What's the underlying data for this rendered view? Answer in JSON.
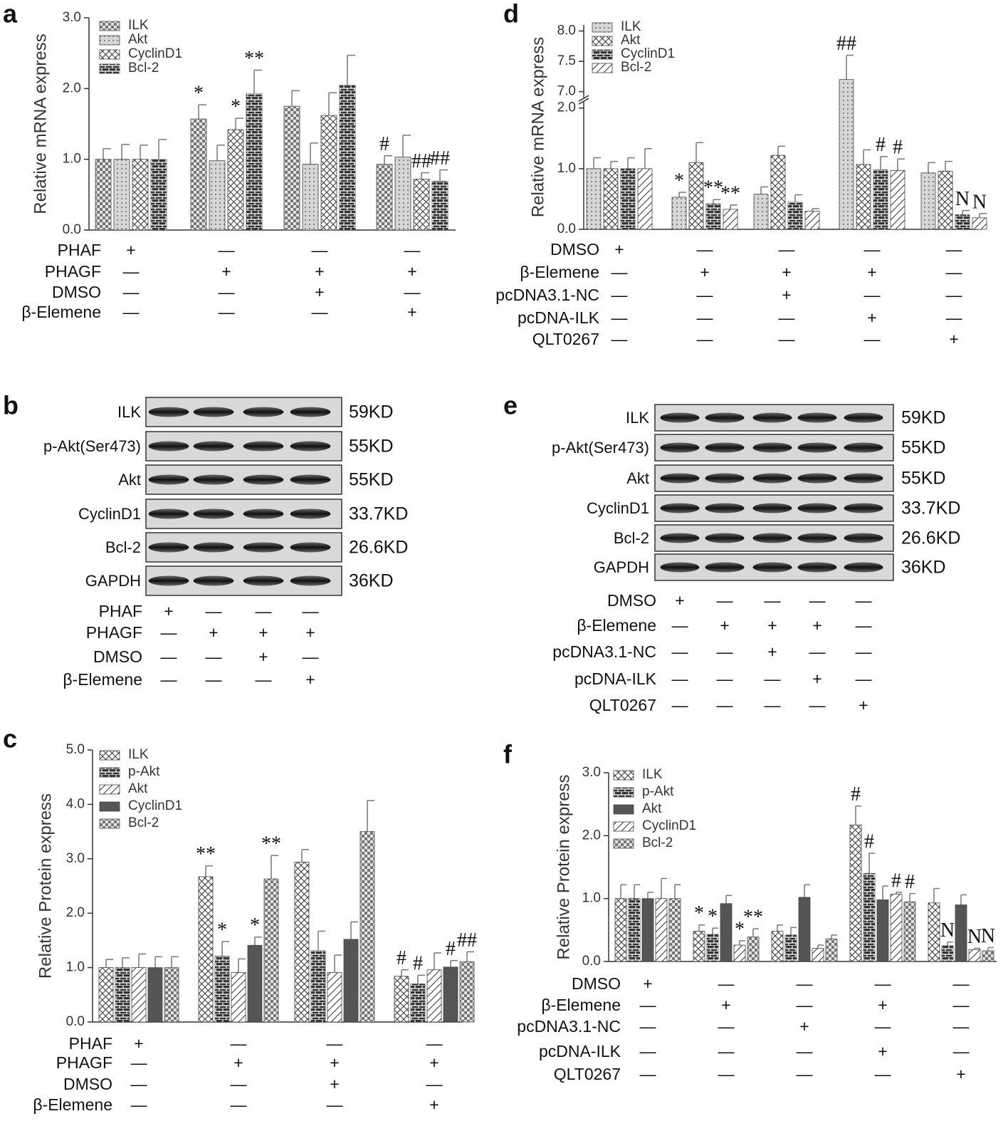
{
  "chart_data": [
    {
      "panel_label": "a",
      "type": "bar",
      "ylabel": "Relative mRNA express",
      "ylim": [
        0,
        3
      ],
      "yticks": [
        {
          "value": 0,
          "label": "0.0"
        },
        {
          "value": 1,
          "label": "1.0"
        },
        {
          "value": 2,
          "label": "2.0"
        },
        {
          "value": 3,
          "label": "3.0"
        }
      ],
      "legend": "upper left",
      "series": [
        {
          "name": "ILK",
          "color": "#e2e2e2",
          "pattern": "checker",
          "values": [
            1.0,
            1.57,
            1.75,
            0.93
          ],
          "errors": [
            0.15,
            0.2,
            0.22,
            0.12
          ],
          "significance": [
            null,
            "*",
            null,
            "#"
          ]
        },
        {
          "name": "Akt",
          "color": "#d6d6d6",
          "pattern": "dots",
          "values": [
            1.0,
            0.98,
            0.93,
            1.03
          ],
          "errors": [
            0.21,
            0.22,
            0.3,
            0.31
          ],
          "significance": [
            null,
            null,
            null,
            null
          ]
        },
        {
          "name": "CyclinD1",
          "color": "#ffffff",
          "pattern": "crosshatch",
          "values": [
            1.0,
            1.42,
            1.62,
            0.72
          ],
          "errors": [
            0.2,
            0.16,
            0.32,
            0.09
          ],
          "significance": [
            null,
            "*",
            null,
            "##"
          ]
        },
        {
          "name": "Bcl-2",
          "color": "#333333",
          "pattern": "bricks",
          "values": [
            1.0,
            1.93,
            2.05,
            0.69
          ],
          "errors": [
            0.28,
            0.33,
            0.42,
            0.16
          ],
          "significance": [
            null,
            "**",
            null,
            "##"
          ]
        }
      ],
      "treatments": [
        {
          "name": "PHAF",
          "marks": [
            "+",
            "—",
            "—",
            "—"
          ]
        },
        {
          "name": "PHAGF",
          "marks": [
            "—",
            "+",
            "+",
            "+"
          ]
        },
        {
          "name": "DMSO",
          "marks": [
            "—",
            "—",
            "+",
            "—"
          ]
        },
        {
          "name": "β-Elemene",
          "marks": [
            "—",
            "—",
            "—",
            "+"
          ]
        }
      ]
    },
    {
      "panel_label": "c",
      "type": "bar",
      "ylabel": "Relative Protein express",
      "ylim": [
        0,
        5
      ],
      "yticks": [
        {
          "value": 0,
          "label": "0.0"
        },
        {
          "value": 1,
          "label": "1.0"
        },
        {
          "value": 2,
          "label": "2.0"
        },
        {
          "value": 3,
          "label": "3.0"
        },
        {
          "value": 4,
          "label": "4.0"
        },
        {
          "value": 5,
          "label": "5.0"
        }
      ],
      "legend": "upper left",
      "series": [
        {
          "name": "ILK",
          "color": "#ffffff",
          "pattern": "crosshatch",
          "values": [
            1.0,
            2.67,
            2.94,
            0.84
          ],
          "errors": [
            0.15,
            0.2,
            0.23,
            0.12
          ],
          "significance": [
            null,
            "**",
            null,
            "#"
          ]
        },
        {
          "name": "p-Akt",
          "color": "#333333",
          "pattern": "bricks",
          "values": [
            1.0,
            1.21,
            1.31,
            0.7
          ],
          "errors": [
            0.18,
            0.27,
            0.36,
            0.16
          ],
          "significance": [
            null,
            "*",
            null,
            "#"
          ]
        },
        {
          "name": "Akt",
          "color": "#ffffff",
          "pattern": "diagonal",
          "values": [
            1.0,
            0.91,
            0.91,
            0.96
          ],
          "errors": [
            0.25,
            0.25,
            0.32,
            0.31
          ],
          "significance": [
            null,
            null,
            null,
            null
          ]
        },
        {
          "name": "CyclinD1",
          "color": "#555555",
          "pattern": "solid",
          "values": [
            1.0,
            1.41,
            1.52,
            1.01
          ],
          "errors": [
            0.2,
            0.15,
            0.32,
            0.12
          ],
          "significance": [
            null,
            "*",
            null,
            "#"
          ]
        },
        {
          "name": "Bcl-2",
          "color": "#e2e2e2",
          "pattern": "checker",
          "values": [
            1.0,
            2.63,
            3.5,
            1.11
          ],
          "errors": [
            0.2,
            0.43,
            0.57,
            0.18
          ],
          "significance": [
            null,
            "**",
            null,
            "##"
          ]
        }
      ],
      "treatments": [
        {
          "name": "PHAF",
          "marks": [
            "+",
            "—",
            "—",
            "—"
          ]
        },
        {
          "name": "PHAGF",
          "marks": [
            "—",
            "+",
            "+",
            "+"
          ]
        },
        {
          "name": "DMSO",
          "marks": [
            "—",
            "—",
            "+",
            "—"
          ]
        },
        {
          "name": "β-Elemene",
          "marks": [
            "—",
            "—",
            "—",
            "+"
          ]
        }
      ]
    },
    {
      "panel_label": "d",
      "type": "bar",
      "ylabel": "Relative mRNA express",
      "ylim": [
        0,
        8.1
      ],
      "ybreak": [
        2.1,
        6.9
      ],
      "yticks": [
        {
          "value": 0,
          "label": "0.0"
        },
        {
          "value": 1,
          "label": "1.0"
        },
        {
          "value": 2,
          "label": "2.0"
        },
        {
          "value": 7,
          "label": "7.0"
        },
        {
          "value": 7.5,
          "label": "7.5"
        },
        {
          "value": 8,
          "label": "8.0"
        }
      ],
      "legend": "upper left",
      "series": [
        {
          "name": "ILK",
          "color": "#d6d6d6",
          "pattern": "dots",
          "values": [
            1.0,
            0.53,
            0.58,
            7.2,
            0.93
          ],
          "errors": [
            0.18,
            0.08,
            0.12,
            0.4,
            0.17
          ],
          "significance": [
            null,
            "*",
            null,
            "##",
            null
          ]
        },
        {
          "name": "Akt",
          "color": "#ffffff",
          "pattern": "crosshatch",
          "values": [
            1.0,
            1.1,
            1.22,
            1.07,
            0.96
          ],
          "errors": [
            0.12,
            0.33,
            0.15,
            0.24,
            0.16
          ],
          "significance": [
            null,
            null,
            null,
            null,
            null
          ]
        },
        {
          "name": "CyclinD1",
          "color": "#333333",
          "pattern": "bricks",
          "values": [
            1.0,
            0.42,
            0.45,
            0.98,
            0.24
          ],
          "errors": [
            0.18,
            0.07,
            0.12,
            0.22,
            0.07
          ],
          "significance": [
            null,
            "**",
            null,
            "#",
            "N"
          ]
        },
        {
          "name": "Bcl-2",
          "color": "#ffffff",
          "pattern": "diagonal",
          "values": [
            1.0,
            0.33,
            0.3,
            0.97,
            0.19
          ],
          "errors": [
            0.33,
            0.07,
            0.04,
            0.19,
            0.07
          ],
          "significance": [
            null,
            "**",
            null,
            "#",
            "N"
          ]
        }
      ],
      "treatments": [
        {
          "name": "DMSO",
          "marks": [
            "+",
            "—",
            "—",
            "—",
            "—"
          ]
        },
        {
          "name": "β-Elemene",
          "marks": [
            "—",
            "+",
            "+",
            "+",
            "—"
          ]
        },
        {
          "name": "pcDNA3.1-NC",
          "marks": [
            "—",
            "—",
            "+",
            "—",
            "—"
          ]
        },
        {
          "name": "pcDNA-ILK",
          "marks": [
            "—",
            "—",
            "—",
            "+",
            "—"
          ]
        },
        {
          "name": "QLT0267",
          "marks": [
            "—",
            "—",
            "—",
            "—",
            "+"
          ]
        }
      ]
    },
    {
      "panel_label": "f",
      "type": "bar",
      "ylabel": "Relative Protein express",
      "ylim": [
        0,
        3
      ],
      "yticks": [
        {
          "value": 0,
          "label": "0.0"
        },
        {
          "value": 1,
          "label": "1.0"
        },
        {
          "value": 2,
          "label": "2.0"
        },
        {
          "value": 3,
          "label": "3.0"
        }
      ],
      "legend": "upper left",
      "series": [
        {
          "name": "ILK",
          "color": "#ffffff",
          "pattern": "crosshatch",
          "values": [
            1.0,
            0.48,
            0.48,
            2.17,
            0.93
          ],
          "errors": [
            0.22,
            0.1,
            0.1,
            0.3,
            0.23
          ],
          "significance": [
            null,
            "*",
            null,
            "#",
            null
          ]
        },
        {
          "name": "p-Akt",
          "color": "#333333",
          "pattern": "bricks",
          "values": [
            1.0,
            0.43,
            0.42,
            1.4,
            0.25
          ],
          "errors": [
            0.22,
            0.1,
            0.12,
            0.32,
            0.06
          ],
          "significance": [
            null,
            "*",
            null,
            "#",
            "N"
          ]
        },
        {
          "name": "Akt",
          "color": "#555555",
          "pattern": "solid",
          "values": [
            1.0,
            0.92,
            1.02,
            0.98,
            0.9
          ],
          "errors": [
            0.1,
            0.13,
            0.2,
            0.22,
            0.16
          ],
          "significance": [
            null,
            null,
            null,
            null,
            null
          ]
        },
        {
          "name": "CyclinD1",
          "color": "#ffffff",
          "pattern": "diagonal",
          "values": [
            1.0,
            0.26,
            0.21,
            1.07,
            0.19
          ],
          "errors": [
            0.32,
            0.07,
            0.05,
            0.03,
            0.02
          ],
          "significance": [
            null,
            "*",
            null,
            "#",
            "N"
          ]
        },
        {
          "name": "Bcl-2",
          "color": "#e2e2e2",
          "pattern": "checker",
          "values": [
            1.0,
            0.39,
            0.36,
            0.95,
            0.17
          ],
          "errors": [
            0.22,
            0.13,
            0.06,
            0.13,
            0.05
          ],
          "significance": [
            null,
            "**",
            null,
            "#",
            "N"
          ]
        }
      ],
      "treatments": [
        {
          "name": "DMSO",
          "marks": [
            "+",
            "—",
            "—",
            "—",
            "—"
          ]
        },
        {
          "name": "β-Elemene",
          "marks": [
            "—",
            "+",
            "—",
            "+",
            "—"
          ]
        },
        {
          "name": "pcDNA3.1-NC",
          "marks": [
            "—",
            "—",
            "+",
            "—",
            "—"
          ]
        },
        {
          "name": "pcDNA-ILK",
          "marks": [
            "—",
            "—",
            "—",
            "+",
            "—"
          ]
        },
        {
          "name": "QLT0267",
          "marks": [
            "—",
            "—",
            "—",
            "—",
            "+"
          ]
        }
      ]
    }
  ],
  "blots": [
    {
      "panel_label": "b",
      "rows": [
        {
          "label": "ILK",
          "size": "59KD"
        },
        {
          "label": "p-Akt(Ser473)",
          "size": "55KD"
        },
        {
          "label": "Akt",
          "size": "55KD"
        },
        {
          "label": "CyclinD1",
          "size": "33.7KD"
        },
        {
          "label": "Bcl-2",
          "size": "26.6KD"
        },
        {
          "label": "GAPDH",
          "size": "36KD"
        }
      ],
      "treatments": [
        {
          "name": "PHAF",
          "marks": [
            "+",
            "—",
            "—",
            "—"
          ]
        },
        {
          "name": "PHAGF",
          "marks": [
            "—",
            "+",
            "+",
            "+"
          ]
        },
        {
          "name": "DMSO",
          "marks": [
            "—",
            "—",
            "+",
            "—"
          ]
        },
        {
          "name": "β-Elemene",
          "marks": [
            "—",
            "—",
            "—",
            "+"
          ]
        }
      ]
    },
    {
      "panel_label": "e",
      "rows": [
        {
          "label": "ILK",
          "size": "59KD"
        },
        {
          "label": "p-Akt(Ser473)",
          "size": "55KD"
        },
        {
          "label": "Akt",
          "size": "55KD"
        },
        {
          "label": "CyclinD1",
          "size": "33.7KD"
        },
        {
          "label": "Bcl-2",
          "size": "26.6KD"
        },
        {
          "label": "GAPDH",
          "size": "36KD"
        }
      ],
      "treatments": [
        {
          "name": "DMSO",
          "marks": [
            "+",
            "—",
            "—",
            "—",
            "—"
          ]
        },
        {
          "name": "β-Elemene",
          "marks": [
            "—",
            "+",
            "+",
            "+",
            "—"
          ]
        },
        {
          "name": "pcDNA3.1-NC",
          "marks": [
            "—",
            "—",
            "+",
            "—",
            "—"
          ]
        },
        {
          "name": "pcDNA-ILK",
          "marks": [
            "—",
            "—",
            "—",
            "+",
            "—"
          ]
        },
        {
          "name": "QLT0267",
          "marks": [
            "—",
            "—",
            "—",
            "—",
            "+"
          ]
        }
      ]
    }
  ]
}
